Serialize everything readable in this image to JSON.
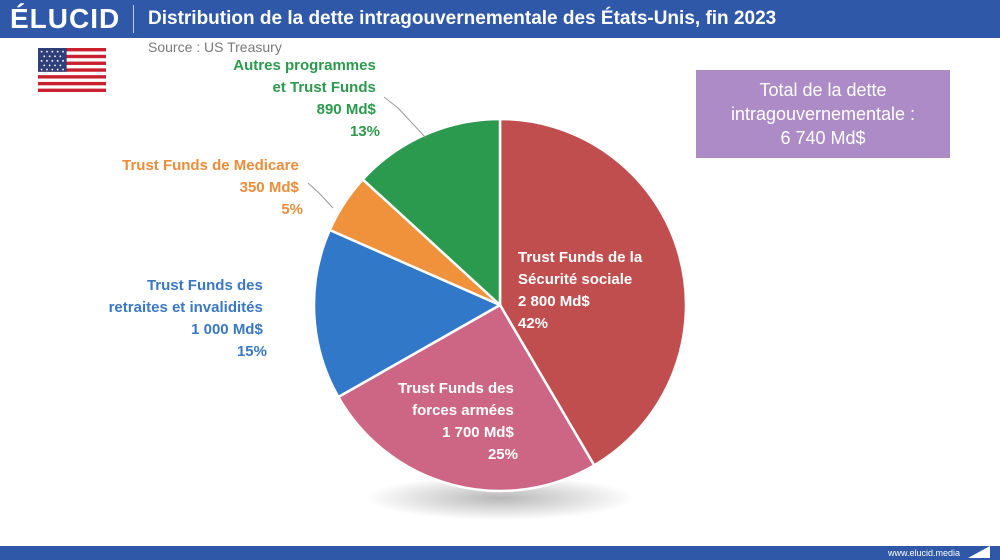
{
  "brand": {
    "logo": "ÉLUCID",
    "website": "www.elucid.media"
  },
  "chart_data": {
    "type": "pie",
    "title": "Distribution de la dette intragouvernementale des États-Unis, fin 2023",
    "source": "Source : US Treasury",
    "total_label": "Total de la dette intragouvernementale :",
    "total_value": "6 740 Md$",
    "slices": [
      {
        "name": "Trust Funds de la Sécurité sociale",
        "value": 2800,
        "value_label": "2 800 Md$",
        "percent": 42,
        "percent_label": "42%",
        "color": "#c14e4e"
      },
      {
        "name": "Trust Funds des forces armées",
        "value": 1700,
        "value_label": "1 700 Md$",
        "percent": 25,
        "percent_label": "25%",
        "color": "#cd6684"
      },
      {
        "name": "Trust Funds des retraites et invalidités",
        "value": 1000,
        "value_label": "1 000 Md$",
        "percent": 15,
        "percent_label": "15%",
        "color": "#3278c8"
      },
      {
        "name": "Trust Funds de Medicare",
        "value": 350,
        "value_label": "350 Md$",
        "percent": 5,
        "percent_label": "5%",
        "color": "#f0923c"
      },
      {
        "name": "Autres programmes et Trust Funds",
        "value": 890,
        "value_label": "890 Md$",
        "percent": 13,
        "percent_label": "13%",
        "color": "#2b9a4e"
      }
    ]
  },
  "labels": {
    "s0": [
      "Trust Funds de la",
      "Sécurité sociale",
      "2 800 Md$",
      "42%"
    ],
    "s1": [
      "Trust Funds des",
      "forces armées",
      "1 700 Md$",
      "25%"
    ],
    "s2": [
      "Trust Funds des",
      "retraites et invalidités",
      "1 000 Md$",
      "15%"
    ],
    "s3": [
      "Trust Funds de Medicare",
      "350 Md$",
      "5%"
    ],
    "s4": [
      "Autres programmes",
      "et Trust Funds",
      "890 Md$",
      "13%"
    ]
  },
  "colors": {
    "header": "#2f58a8",
    "total_box": "#ac8bc7",
    "label_blue": "#3b78c4",
    "label_orange": "#eb8c3a",
    "label_green": "#2c9a4c"
  }
}
